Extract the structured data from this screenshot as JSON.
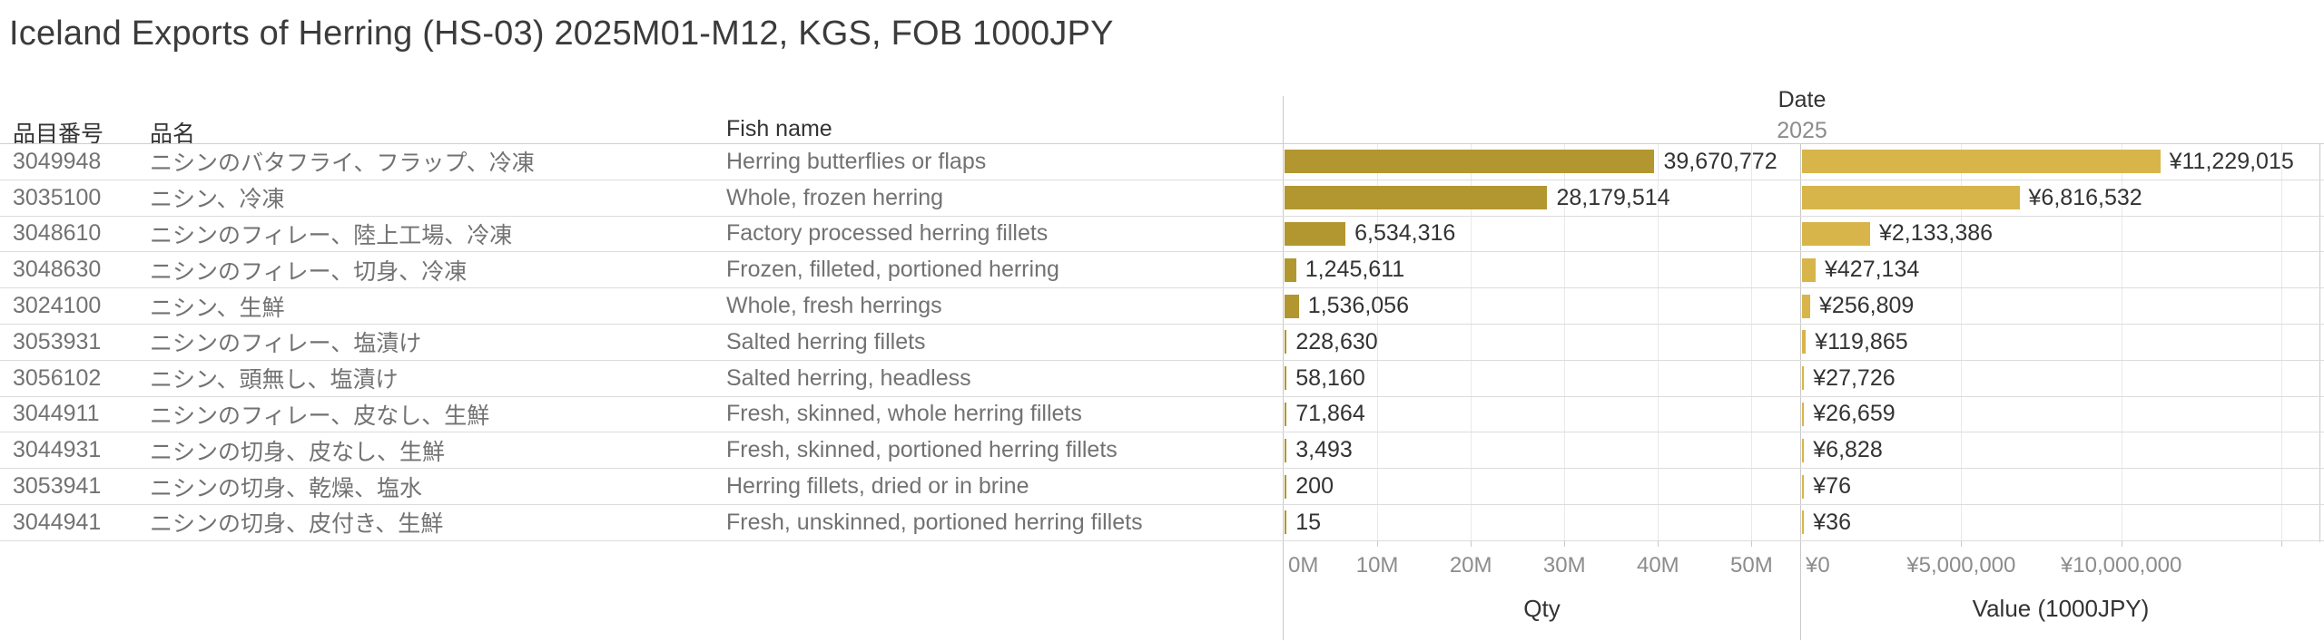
{
  "title": "Iceland Exports of Herring (HS-03) 2025M01-M12, KGS, FOB 1000JPY",
  "header": {
    "code": "品目番号",
    "name_jp": "品名",
    "fish_name": "Fish name",
    "date_label": "Date",
    "year_label": "2025"
  },
  "axes": {
    "qty": {
      "title": "Qty",
      "max": 55200000,
      "gridlines": [
        10000000,
        20000000,
        30000000,
        40000000,
        50000000
      ],
      "ticks": [
        {
          "label": "0M",
          "value": 0
        },
        {
          "label": "10M",
          "value": 10000000
        },
        {
          "label": "20M",
          "value": 20000000
        },
        {
          "label": "30M",
          "value": 30000000
        },
        {
          "label": "40M",
          "value": 40000000
        },
        {
          "label": "50M",
          "value": 50000000
        }
      ]
    },
    "value": {
      "title": "Value (1000JPY)",
      "max": 16220000,
      "gridlines": [
        5000000,
        10000000,
        15000000
      ],
      "ticks": [
        {
          "label": "¥0",
          "value": 0
        },
        {
          "label": "¥5,000,000",
          "value": 5000000
        },
        {
          "label": "¥10,000,000",
          "value": 10000000
        }
      ]
    }
  },
  "colors": {
    "qty_bar": "#b29630",
    "value_bar": "#d7b54b"
  },
  "rows": [
    {
      "code": "3049948",
      "name_jp": "ニシンのバタフライ、フラップ、冷凍",
      "fish_name": "Herring butterflies or flaps",
      "qty": 39670772,
      "qty_label": "39,670,772",
      "value": 11229015,
      "value_label": "¥11,229,015"
    },
    {
      "code": "3035100",
      "name_jp": "ニシン、冷凍",
      "fish_name": "Whole, frozen herring",
      "qty": 28179514,
      "qty_label": "28,179,514",
      "value": 6816532,
      "value_label": "¥6,816,532"
    },
    {
      "code": "3048610",
      "name_jp": "ニシンのフィレー、陸上工場、冷凍",
      "fish_name": "Factory processed herring fillets",
      "qty": 6534316,
      "qty_label": "6,534,316",
      "value": 2133386,
      "value_label": "¥2,133,386"
    },
    {
      "code": "3048630",
      "name_jp": "ニシンのフィレー、切身、冷凍",
      "fish_name": "Frozen, filleted, portioned herring",
      "qty": 1245611,
      "qty_label": "1,245,611",
      "value": 427134,
      "value_label": "¥427,134"
    },
    {
      "code": "3024100",
      "name_jp": "ニシン、生鮮",
      "fish_name": "Whole, fresh herrings",
      "qty": 1536056,
      "qty_label": "1,536,056",
      "value": 256809,
      "value_label": "¥256,809"
    },
    {
      "code": "3053931",
      "name_jp": "ニシンのフィレー、塩漬け",
      "fish_name": "Salted herring fillets",
      "qty": 228630,
      "qty_label": "228,630",
      "value": 119865,
      "value_label": "¥119,865"
    },
    {
      "code": "3056102",
      "name_jp": "ニシン、頭無し、塩漬け",
      "fish_name": "Salted herring, headless",
      "qty": 58160,
      "qty_label": "58,160",
      "value": 27726,
      "value_label": "¥27,726"
    },
    {
      "code": "3044911",
      "name_jp": "ニシンのフィレー、皮なし、生鮮",
      "fish_name": "Fresh, skinned, whole herring fillets",
      "qty": 71864,
      "qty_label": "71,864",
      "value": 26659,
      "value_label": "¥26,659"
    },
    {
      "code": "3044931",
      "name_jp": "ニシンの切身、皮なし、生鮮",
      "fish_name": "Fresh, skinned, portioned herring fillets",
      "qty": 3493,
      "qty_label": "3,493",
      "value": 6828,
      "value_label": "¥6,828"
    },
    {
      "code": "3053941",
      "name_jp": "ニシンの切身、乾燥、塩水",
      "fish_name": "Herring fillets, dried or in brine",
      "qty": 200,
      "qty_label": "200",
      "value": 76,
      "value_label": "¥76"
    },
    {
      "code": "3044941",
      "name_jp": "ニシンの切身、皮付き、生鮮",
      "fish_name": "Fresh, unskinned, portioned herring fillets",
      "qty": 15,
      "qty_label": "15",
      "value": 36,
      "value_label": "¥36"
    }
  ],
  "chart_data": {
    "type": "bar",
    "orientation": "horizontal",
    "title": "Iceland Exports of Herring (HS-03) 2025M01-M12, KGS, FOB 1000JPY",
    "categories": [
      "Herring butterflies or flaps",
      "Whole, frozen herring",
      "Factory processed herring fillets",
      "Frozen, filleted, portioned herring",
      "Whole, fresh herrings",
      "Salted herring fillets",
      "Salted herring, headless",
      "Fresh, skinned, whole herring fillets",
      "Fresh, skinned, portioned herring fillets",
      "Herring fillets, dried or in brine",
      "Fresh, unskinned, portioned herring fillets"
    ],
    "series": [
      {
        "name": "Qty",
        "values": [
          39670772,
          28179514,
          6534316,
          1245611,
          1536056,
          228630,
          58160,
          71864,
          3493,
          200,
          15
        ],
        "xlim": [
          0,
          55200000
        ],
        "tick_labels": [
          "0M",
          "10M",
          "20M",
          "30M",
          "40M",
          "50M"
        ]
      },
      {
        "name": "Value (1000JPY)",
        "values": [
          11229015,
          6816532,
          2133386,
          427134,
          256809,
          119865,
          27726,
          26659,
          6828,
          76,
          36
        ],
        "xlim": [
          0,
          16220000
        ],
        "tick_labels": [
          "¥0",
          "¥5,000,000",
          "¥10,000,000"
        ]
      }
    ],
    "grid": true,
    "legend": false,
    "column_group_label": "Date",
    "column_group_value": "2025"
  }
}
